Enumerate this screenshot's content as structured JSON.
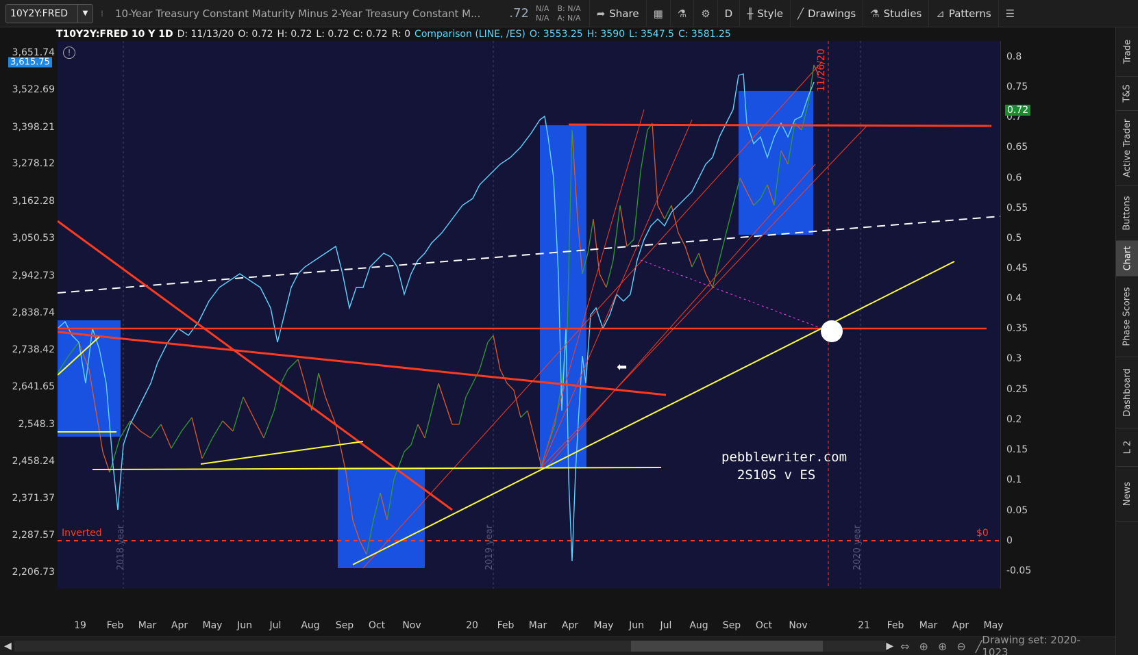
{
  "toolbar": {
    "symbol": "10Y2Y:FRED",
    "description": "10-Year Treasury Constant Maturity Minus 2-Year Treasury Constant M...",
    "last_price": ".72",
    "bid_na": "N/A",
    "ask_na": "N/A",
    "bid_label": "B: N/A",
    "ask_label": "A: N/A",
    "share_label": "Share",
    "aggregation": "D",
    "style_label": "Style",
    "drawings_label": "Drawings",
    "studies_label": "Studies",
    "patterns_label": "Patterns"
  },
  "chart_header": {
    "symbol": "T10Y2Y:FRED 10 Y 1D",
    "date": "D: 11/13/20",
    "open": "O: 0.72",
    "high": "H: 0.72",
    "low": "L: 0.72",
    "close": "C: 0.72",
    "range": "R: 0",
    "comparison": "Comparison (LINE, /ES)",
    "cmp_open": "O: 3553.25",
    "cmp_high": "H: 3590",
    "cmp_low": "L: 3547.5",
    "cmp_close": "C: 3581.25"
  },
  "left_axis": {
    "ticks": [
      "3,651.74",
      "3,522.69",
      "3,398.21",
      "3,278.12",
      "3,162.28",
      "3,050.53",
      "2,942.73",
      "2,838.74",
      "2,738.42",
      "2,641.65",
      "2,548.3",
      "2,458.24",
      "2,371.37",
      "2,287.57",
      "2,206.73"
    ],
    "current_badge": "3,615.75"
  },
  "right_axis": {
    "ticks": [
      "0.8",
      "0.75",
      "0.7",
      "0.65",
      "0.6",
      "0.55",
      "0.5",
      "0.45",
      "0.4",
      "0.35",
      "0.3",
      "0.25",
      "0.2",
      "0.15",
      "0.1",
      "0.05",
      "0",
      "-0.05"
    ],
    "current_badge": "0.72"
  },
  "date_axis": {
    "labels": [
      "19",
      "Feb",
      "Mar",
      "Apr",
      "May",
      "Jun",
      "Jul",
      "Aug",
      "Sep",
      "Oct",
      "Nov",
      "20",
      "Feb",
      "Mar",
      "Apr",
      "May",
      "Jun",
      "Jul",
      "Aug",
      "Sep",
      "Oct",
      "Nov",
      "21",
      "Feb",
      "Mar",
      "Apr",
      "May"
    ]
  },
  "annotations": {
    "inverted": "Inverted",
    "zero_dollar": "$0",
    "date_marker": "11/26/20",
    "year_2018": "2018 year",
    "year_2019": "2019 year",
    "year_2020": "2020 year",
    "watermark_line1": "pebblewriter.com",
    "watermark_line2": "  2S10S v ES"
  },
  "side_tabs": [
    "Trade",
    "T&S",
    "Active Trader",
    "Buttons",
    "Chart",
    "Phase Scores",
    "Dashboard",
    "L 2",
    "News"
  ],
  "side_active": "Chart",
  "status_bar": {
    "drawing_set": "Drawing set: 2020-1023"
  },
  "colors": {
    "plot_bg": "#141438",
    "es_line": "#5fd5ff",
    "spread_up": "#2e9d2e",
    "spread_down": "#e05a2a",
    "trend_red": "#ff3b1f",
    "trend_yellow": "#ffff33",
    "box_blue": "#1a5cff"
  }
}
